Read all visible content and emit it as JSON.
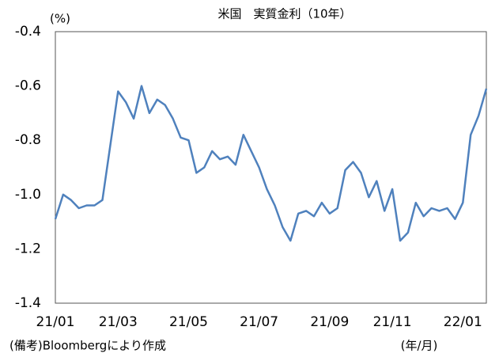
{
  "chart_data": {
    "type": "line",
    "title": "米国　実質金利（10年）",
    "y_label": "(%)",
    "x_label": "(年/月)",
    "note": "(備考)Bloombergにより作成",
    "categories": [
      "21/01",
      null,
      null,
      null,
      null,
      null,
      null,
      null,
      "21/03",
      null,
      null,
      null,
      null,
      null,
      null,
      null,
      null,
      "21/05",
      null,
      null,
      null,
      null,
      null,
      null,
      null,
      null,
      "21/07",
      null,
      null,
      null,
      null,
      null,
      null,
      null,
      null,
      "21/09",
      null,
      null,
      null,
      null,
      null,
      null,
      null,
      "21/11",
      null,
      null,
      null,
      null,
      null,
      null,
      null,
      null,
      "22/01",
      null,
      null,
      null
    ],
    "series": [
      {
        "name": "実質金利",
        "color": "#4f81bd",
        "values": [
          -1.09,
          -1.0,
          -1.02,
          -1.05,
          -1.04,
          -1.04,
          -1.02,
          -0.82,
          -0.62,
          -0.66,
          -0.72,
          -0.6,
          -0.7,
          -0.65,
          -0.67,
          -0.72,
          -0.79,
          -0.8,
          -0.92,
          -0.9,
          -0.84,
          -0.87,
          -0.86,
          -0.89,
          -0.78,
          -0.84,
          -0.9,
          -0.98,
          -1.04,
          -1.12,
          -1.17,
          -1.07,
          -1.06,
          -1.08,
          -1.03,
          -1.07,
          -1.05,
          -0.91,
          -0.88,
          -0.92,
          -1.01,
          -0.95,
          -1.06,
          -0.98,
          -1.17,
          -1.14,
          -1.03,
          -1.08,
          -1.05,
          -1.06,
          -1.05,
          -1.09,
          -1.03,
          -0.78,
          -0.71,
          -0.61
        ]
      }
    ],
    "ylim": [
      -1.4,
      -0.4
    ],
    "yticks": [
      -1.4,
      -1.2,
      {
        "value": -1,
        "label": "-1.0"
      },
      -0.8,
      -0.6,
      -0.4
    ],
    "grid": false
  }
}
